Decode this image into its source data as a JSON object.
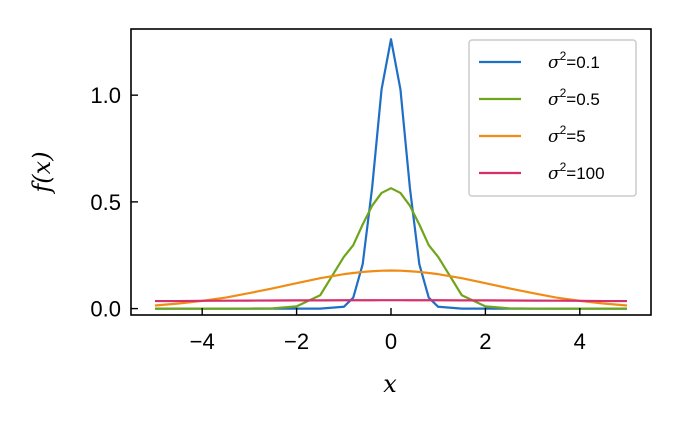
{
  "chart_data": {
    "type": "line",
    "title": "",
    "xlabel": "x",
    "ylabel": "f(x)",
    "xlim": [
      -5.0,
      5.0
    ],
    "ylim": [
      -0.03,
      1.31
    ],
    "xticks": [
      -4,
      -2,
      0,
      2,
      4
    ],
    "xtick_labels": [
      "−4",
      "−2",
      "0",
      "2",
      "4"
    ],
    "yticks": [
      0.0,
      0.5,
      1.0
    ],
    "ytick_labels": [
      "0.0",
      "0.5",
      "1.0"
    ],
    "grid": false,
    "legend_position": "top-right",
    "x": [
      -5,
      -4.5,
      -4,
      -3.5,
      -3,
      -2.5,
      -2,
      -1.5,
      -1,
      -0.8,
      -0.6,
      -0.4,
      -0.2,
      0,
      0.2,
      0.4,
      0.6,
      0.8,
      1,
      1.5,
      2,
      2.5,
      3,
      3.5,
      4,
      4.5,
      5
    ],
    "series": [
      {
        "legend_prefix": "σ",
        "legend_exp": "2",
        "legend_value": "=0.1",
        "color": "#1f6fc6",
        "values": [
          0,
          0,
          0,
          0,
          0,
          0,
          0,
          0,
          0.0085,
          0.051,
          0.208,
          0.566,
          1.027,
          1.262,
          1.027,
          0.566,
          0.208,
          0.051,
          0.0085,
          0,
          0,
          0,
          0,
          0,
          0,
          0,
          0
        ]
      },
      {
        "legend_prefix": "σ",
        "legend_exp": "2",
        "legend_value": "=0.5",
        "color": "#6ea51c",
        "values": [
          0,
          0,
          0,
          0,
          0.0001,
          0.0011,
          0.0103,
          0.0625,
          0.242,
          0.2969,
          0.394,
          0.4821,
          0.5419,
          0.5642,
          0.5419,
          0.4821,
          0.394,
          0.2969,
          0.242,
          0.0625,
          0.0103,
          0.0011,
          0.0001,
          0,
          0,
          0,
          0
        ]
      },
      {
        "legend_prefix": "σ",
        "legend_exp": "2",
        "legend_value": "=5",
        "color": "#f08c14",
        "values": [
          0.0146,
          0.0238,
          0.0361,
          0.0518,
          0.0727,
          0.0952,
          0.1191,
          0.1425,
          0.1614,
          0.1669,
          0.1717,
          0.175,
          0.1777,
          0.1784,
          0.1777,
          0.175,
          0.1717,
          0.1669,
          0.1614,
          0.1425,
          0.1191,
          0.0952,
          0.0727,
          0.0518,
          0.0361,
          0.0238,
          0.0146
        ]
      },
      {
        "legend_prefix": "σ",
        "legend_exp": "2",
        "legend_value": "=100",
        "color": "#d72f6b",
        "values": [
          0.0352,
          0.0354,
          0.0366,
          0.037,
          0.0375,
          0.038,
          0.0384,
          0.0387,
          0.039,
          0.0391,
          0.0391,
          0.0392,
          0.0393,
          0.0393,
          0.0393,
          0.0392,
          0.0391,
          0.0391,
          0.039,
          0.0387,
          0.0384,
          0.038,
          0.0375,
          0.037,
          0.0366,
          0.0354,
          0.0352
        ]
      }
    ]
  }
}
